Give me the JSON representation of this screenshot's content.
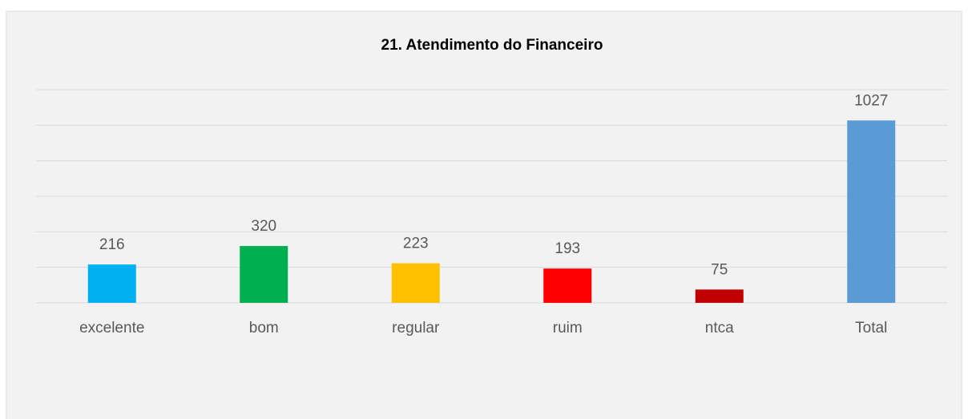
{
  "chart_data": {
    "type": "bar",
    "title": "21. Atendimento do Financeiro",
    "categories": [
      "excelente",
      "bom",
      "regular",
      "ruim",
      "ntca",
      "Total"
    ],
    "values": [
      216,
      320,
      223,
      193,
      75,
      1027
    ],
    "colors": [
      "#00b0f0",
      "#00b050",
      "#ffc000",
      "#ff0000",
      "#c00000",
      "#5b9bd5"
    ],
    "ylim": [
      0,
      1200
    ],
    "yticks": [
      0,
      200,
      400,
      600,
      800,
      1000,
      1200
    ],
    "grid": true
  }
}
